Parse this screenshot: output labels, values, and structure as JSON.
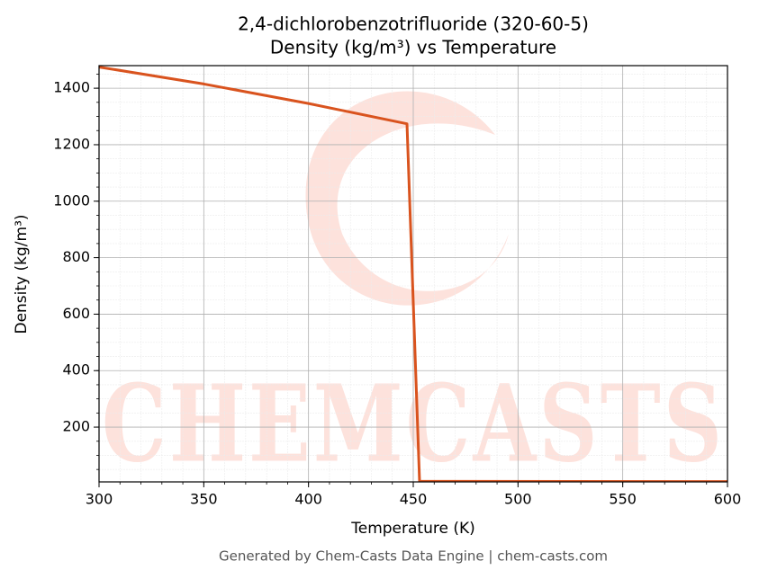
{
  "chart_data": {
    "type": "line",
    "title": "2,4-dichlorobenzotrifluoride (320-60-5)",
    "subtitle": "Density (kg/m³) vs Temperature",
    "x_label": "Temperature (K)",
    "y_label": "Density (kg/m³)",
    "x": [
      300,
      350,
      400,
      447,
      453,
      600
    ],
    "values": [
      1475,
      1415,
      1346,
      1274,
      8,
      7
    ],
    "color": "#d9531e",
    "xlim": [
      300,
      600
    ],
    "xticks": [
      300,
      350,
      400,
      450,
      500,
      550,
      600
    ],
    "ylim": [
      6,
      1480
    ],
    "yticks": [
      200,
      400,
      600,
      800,
      1000,
      1200,
      1400
    ],
    "grid": true,
    "minor_grid": true,
    "watermark": "CHEMCASTS",
    "footer": "Generated by Chem-Casts Data Engine | chem-casts.com"
  }
}
